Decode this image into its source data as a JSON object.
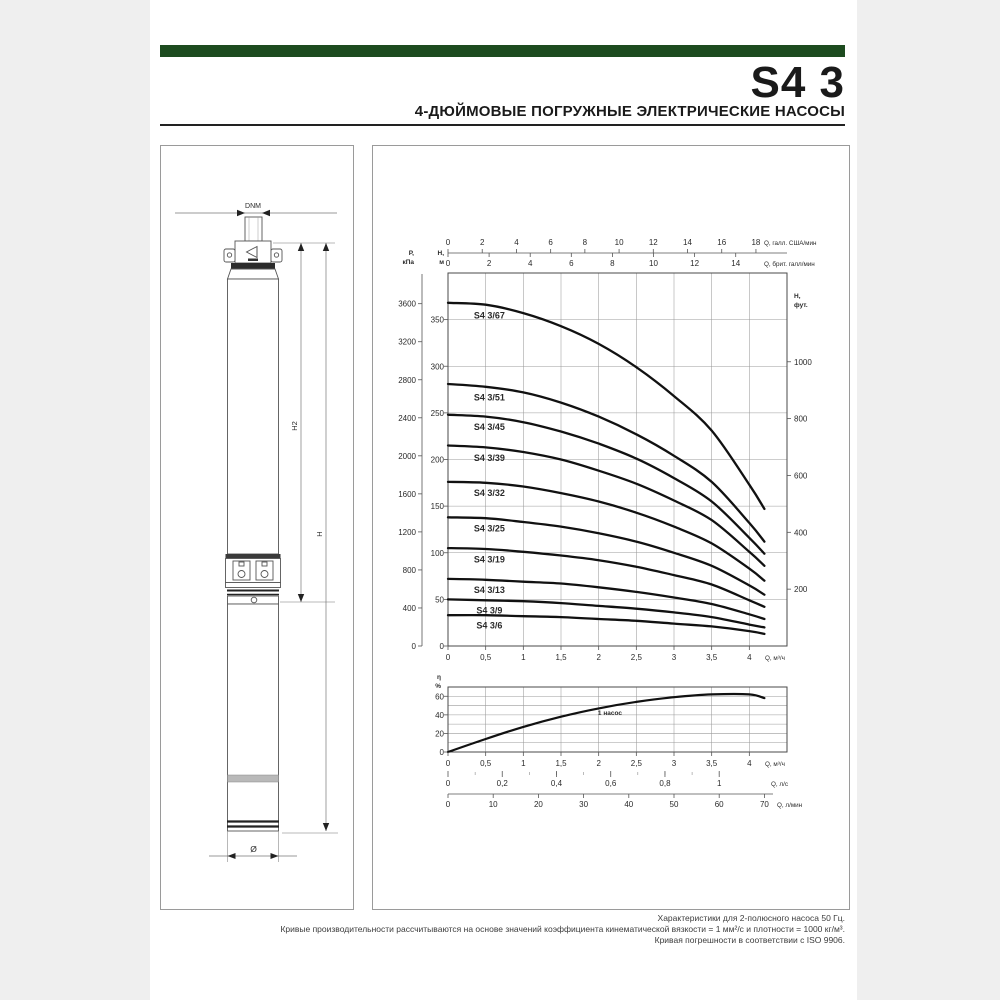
{
  "page": {
    "title": "S4 3",
    "subtitle": "4-ДЮЙМОВЫЕ ПОГРУЖНЫЕ ЭЛЕКТРИЧЕСКИЕ НАСОСЫ",
    "accent_color": "#1d4b1f"
  },
  "pump_drawing": {
    "labels": {
      "dnm": "DNM",
      "h2": "H2",
      "h": "H",
      "diameter": "Ø"
    }
  },
  "chart_data": [
    {
      "type": "line",
      "title": "Head curves S4 3",
      "xlim": [
        0,
        4.5
      ],
      "ylim": [
        0,
        400
      ],
      "grid": {
        "x_step": 0.5,
        "y_step": 50
      },
      "axes": {
        "top_us": {
          "label": "Q, галл. США/мин",
          "unit_to_m3h": 0.2271,
          "ticks": [
            0,
            2,
            4,
            6,
            8,
            10,
            12,
            14,
            16,
            18
          ]
        },
        "top_imp": {
          "label": "Q, брит. галл/мин",
          "unit_to_m3h": 0.2728,
          "ticks": [
            0,
            2,
            4,
            6,
            8,
            10,
            12,
            14
          ]
        },
        "left_kpa": {
          "label": "P, кПа",
          "unit_to_m": 0.10197,
          "ticks": [
            0,
            400,
            800,
            1200,
            1600,
            2000,
            2400,
            2800,
            3200,
            3600
          ]
        },
        "left_m": {
          "label": "H, м",
          "ticks": [
            0,
            50,
            100,
            150,
            200,
            250,
            300,
            350
          ]
        },
        "right_ft": {
          "label": "H, фут.",
          "unit_to_m": 0.3048,
          "ticks": [
            200,
            400,
            600,
            800,
            1000
          ]
        },
        "bottom_m3h": {
          "label": "Q, м³/ч",
          "ticks": [
            0,
            0.5,
            1,
            1.5,
            2,
            2.5,
            3,
            3.5,
            4
          ]
        }
      },
      "x": [
        0,
        0.5,
        1,
        1.5,
        2,
        2.5,
        3,
        3.5,
        4,
        4.2
      ],
      "series": [
        {
          "name": "S4 3/67",
          "values": [
            368,
            366,
            357,
            343,
            324,
            299,
            268,
            231,
            173,
            147
          ]
        },
        {
          "name": "S4 3/51",
          "values": [
            281,
            278,
            272,
            261,
            246,
            227,
            204,
            176,
            132,
            112
          ]
        },
        {
          "name": "S4 3/45",
          "values": [
            248,
            246,
            240,
            230,
            217,
            201,
            180,
            155,
            116,
            99
          ]
        },
        {
          "name": "S4 3/39",
          "values": [
            215,
            213,
            208,
            200,
            188,
            174,
            156,
            135,
            101,
            86
          ]
        },
        {
          "name": "S4 3/32",
          "values": [
            176,
            175,
            171,
            164,
            155,
            143,
            128,
            110,
            83,
            70
          ]
        },
        {
          "name": "S4 3/25",
          "values": [
            138,
            137,
            133,
            128,
            121,
            112,
            100,
            86,
            65,
            55
          ]
        },
        {
          "name": "S4 3/19",
          "values": [
            105,
            104,
            101,
            97,
            92,
            85,
            76,
            66,
            49,
            42
          ]
        },
        {
          "name": "S4 3/13",
          "values": [
            72,
            71,
            69,
            67,
            63,
            58,
            52,
            45,
            34,
            29
          ]
        },
        {
          "name": "S4 3/9",
          "values": [
            50,
            49,
            48,
            46,
            43,
            40,
            36,
            31,
            23,
            20
          ]
        },
        {
          "name": "S4 3/6",
          "values": [
            33,
            33,
            32,
            31,
            29,
            27,
            24,
            21,
            16,
            13
          ]
        }
      ]
    },
    {
      "type": "line",
      "title": "Efficiency",
      "xlim": [
        0,
        4.5
      ],
      "ylim": [
        0,
        70
      ],
      "grid": {
        "x_step": 0.5,
        "y_step": 10
      },
      "axes": {
        "left_pct": {
          "label": "η %",
          "ticks": [
            0,
            20,
            40,
            60
          ]
        },
        "bottom_m3h": {
          "label": "Q, м³/ч",
          "ticks": [
            0,
            0.5,
            1,
            1.5,
            2,
            2.5,
            3,
            3.5,
            4
          ]
        },
        "bottom_ls": {
          "label": "Q, л/с",
          "unit_to_m3h": 3.6,
          "ticks": [
            0,
            0.2,
            0.4,
            0.6,
            0.8,
            1
          ]
        },
        "bottom_lmin": {
          "label": "Q, л/мин",
          "unit_to_m3h": 0.06,
          "ticks": [
            0,
            10,
            20,
            30,
            40,
            50,
            60,
            70
          ]
        }
      },
      "x": [
        0,
        0.5,
        1,
        1.5,
        2,
        2.5,
        3,
        3.5,
        4,
        4.2
      ],
      "series": [
        {
          "name": "1 насос",
          "values": [
            0,
            14,
            27,
            38,
            47,
            54,
            59,
            62,
            62,
            58
          ]
        }
      ]
    }
  ],
  "footer": {
    "lines": [
      "Характеристики для 2-полюсного насоса 50 Гц.",
      "Кривые производительности рассчитываются на основе значений коэффициента кинематической вязкости = 1 мм²/с и плотности = 1000 кг/м³.",
      "Кривая погрешности в соответствии с ISO 9906."
    ]
  }
}
